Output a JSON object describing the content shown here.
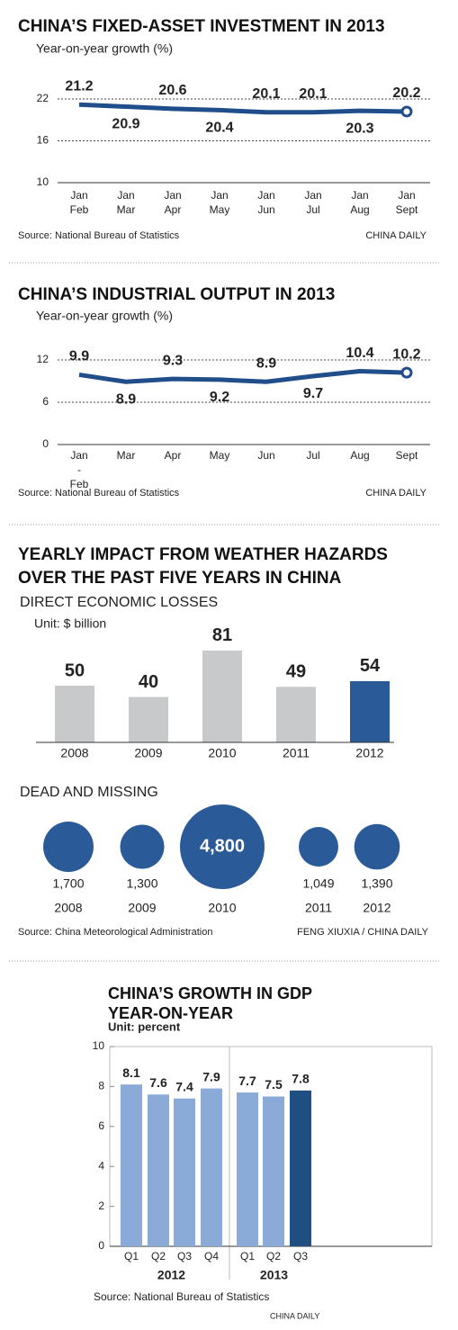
{
  "chart_data": [
    {
      "type": "line",
      "title": "CHINA’S FIXED-ASSET INVESTMENT IN 2013",
      "subtitle": "Year-on-year growth (%)",
      "categories": [
        [
          "Jan",
          "Feb"
        ],
        [
          "Jan",
          "Mar"
        ],
        [
          "Jan",
          "Apr"
        ],
        [
          "Jan",
          "May"
        ],
        [
          "Jan",
          "Jun"
        ],
        [
          "Jan",
          "Jul"
        ],
        [
          "Jan",
          "Aug"
        ],
        [
          "Jan",
          "Sept"
        ]
      ],
      "values": [
        21.2,
        20.9,
        20.6,
        20.4,
        20.1,
        20.1,
        20.3,
        20.2
      ],
      "color": "#1f4e8a",
      "ylim": [
        10,
        25
      ],
      "yticks": [
        10,
        16,
        22
      ],
      "grid": true,
      "source": "Source: National Bureau of Statistics",
      "credit": "CHINA DAILY"
    },
    {
      "type": "line",
      "title": "CHINA’S INDUSTRIAL OUTPUT IN 2013",
      "subtitle": "Year-on-year growth (%)",
      "categories": [
        [
          "Jan",
          "-",
          "Feb"
        ],
        [
          "Mar"
        ],
        [
          "Apr"
        ],
        [
          "May"
        ],
        [
          "Jun"
        ],
        [
          "Jul"
        ],
        [
          "Aug"
        ],
        [
          "Sept"
        ]
      ],
      "values": [
        9.9,
        8.9,
        9.3,
        9.2,
        8.9,
        9.7,
        10.4,
        10.2
      ],
      "color": "#1f4e8a",
      "ylim": [
        0,
        15
      ],
      "yticks": [
        0,
        6,
        12
      ],
      "grid": true,
      "source": "Source: National Bureau of Statistics",
      "credit": "CHINA DAILY"
    },
    {
      "type": "bar",
      "title": [
        "YEARLY IMPACT FROM WEATHER HAZARDS",
        "OVER THE PAST FIVE YEARS IN CHINA"
      ],
      "subtitle": "DIRECT ECONOMIC LOSSES",
      "unit": "Unit: $ billion",
      "categories": [
        "2008",
        "2009",
        "2010",
        "2011",
        "2012"
      ],
      "values": [
        50,
        40,
        81,
        49,
        54
      ],
      "colors": [
        "#c8c9cb",
        "#c8c9cb",
        "#c8c9cb",
        "#c8c9cb",
        "#2a5a97"
      ],
      "ylim": [
        0,
        100
      ]
    },
    {
      "type": "bubble",
      "subtitle": "DEAD AND MISSING",
      "categories": [
        "2008",
        "2009",
        "2010",
        "2011",
        "2012"
      ],
      "values": [
        1700,
        1300,
        4800,
        1049,
        1390
      ],
      "value_labels": [
        "1,700",
        "1,300",
        "4,800",
        "1,049",
        "1,390"
      ],
      "color": "#2a5a97",
      "source": "Source: China Meteorological Administration",
      "credit": "FENG XIUXIA / CHINA DAILY"
    },
    {
      "type": "grouped-bar",
      "title": [
        "CHINA’S GROWTH IN GDP",
        "YEAR-ON-YEAR"
      ],
      "unit": "Unit: percent",
      "series": [
        {
          "name": "2012",
          "categories": [
            "Q1",
            "Q2",
            "Q3",
            "Q4"
          ],
          "values": [
            8.1,
            7.6,
            7.4,
            7.9
          ],
          "colors": [
            "#8aaad8",
            "#8aaad8",
            "#8aaad8",
            "#8aaad8"
          ]
        },
        {
          "name": "2013",
          "categories": [
            "Q1",
            "Q2",
            "Q3"
          ],
          "values": [
            7.7,
            7.5,
            7.8
          ],
          "colors": [
            "#8aaad8",
            "#8aaad8",
            "#1f4e80"
          ]
        }
      ],
      "ylim": [
        0,
        10
      ],
      "yticks": [
        0,
        2,
        4,
        6,
        8,
        10
      ],
      "source": "Source: National Bureau of Statistics",
      "credit": "CHINA DAILY"
    }
  ]
}
